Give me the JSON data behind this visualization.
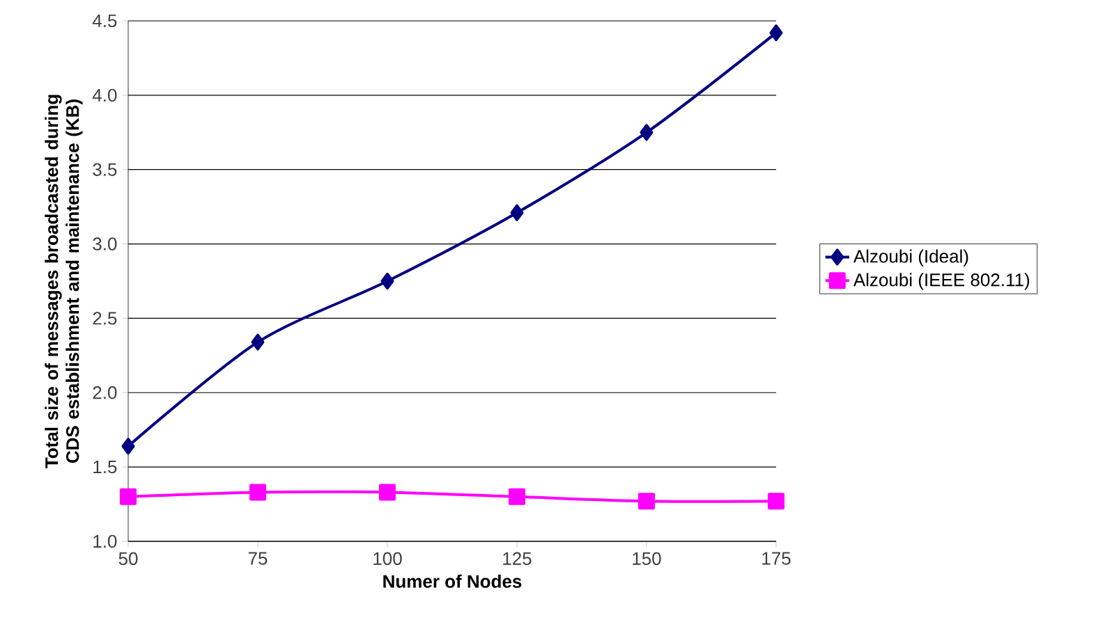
{
  "chart_data": {
    "type": "line",
    "xlabel": "Numer of Nodes",
    "ylabel": "Total size of messages broadcasted during CDS establishment and maintenance (KB)",
    "x": [
      50,
      75,
      100,
      125,
      150,
      175
    ],
    "series": [
      {
        "name": "Alzoubi (Ideal)",
        "color": "#000080",
        "marker": "diamond",
        "values": [
          1.64,
          2.34,
          2.75,
          3.21,
          3.75,
          4.42
        ]
      },
      {
        "name": "Alzoubi (IEEE 802.11)",
        "color": "#ff00ff",
        "marker": "square",
        "values": [
          1.3,
          1.33,
          1.33,
          1.3,
          1.27,
          1.27
        ]
      }
    ],
    "xlim": [
      50,
      175
    ],
    "xticks": [
      50,
      75,
      100,
      125,
      150,
      175
    ],
    "ylim": [
      1.0,
      4.5
    ],
    "yticks": [
      {
        "value": 1.0,
        "label": "1.0"
      },
      {
        "value": 1.5,
        "label": "1.5"
      },
      {
        "value": 2.0,
        "label": "2.0"
      },
      {
        "value": 2.5,
        "label": "2.5"
      },
      {
        "value": 3.0,
        "label": "3.0"
      },
      {
        "value": 3.5,
        "label": "3.5"
      },
      {
        "value": 4.0,
        "label": "4.0"
      },
      {
        "value": 4.5,
        "label": "4.5"
      }
    ],
    "grid": "y",
    "legend": "right"
  }
}
